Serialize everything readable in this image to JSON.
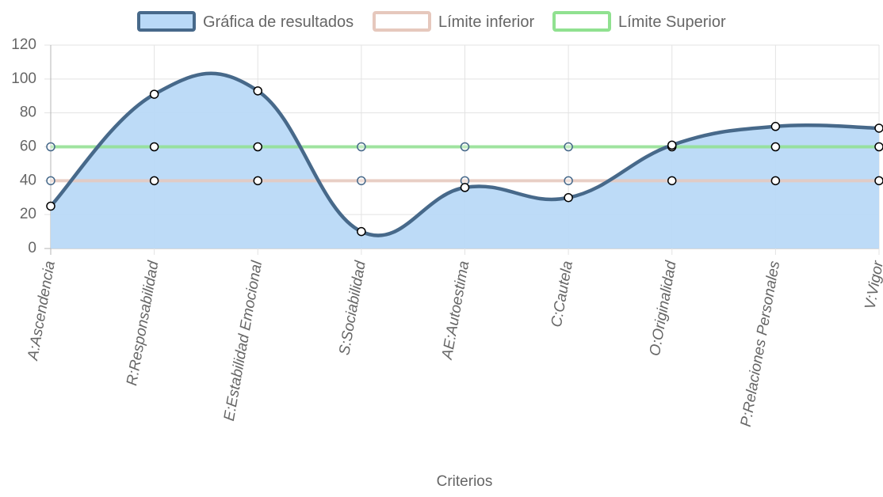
{
  "chart_data": {
    "type": "line",
    "categories": [
      "A:Ascendencia",
      "R:Responsabilidad",
      "E:Estabilidad Emocional",
      "S:Sociabilidad",
      "AE:Autoestima",
      "C:Cautela",
      "O:Originalidad",
      "P:Relaciones Personales",
      "V:Vigor"
    ],
    "series": [
      {
        "name": "Gráfica de resultados",
        "values": [
          25,
          91,
          93,
          10,
          36,
          30,
          61,
          72,
          71
        ],
        "color": "#47698a",
        "fill": "#b9d9f7"
      },
      {
        "name": "Límite inferior",
        "values": [
          40,
          40,
          40,
          40,
          40,
          40,
          40,
          40,
          40
        ],
        "color": "#e6c8bd"
      },
      {
        "name": "Límite Superior",
        "values": [
          60,
          60,
          60,
          60,
          60,
          60,
          60,
          60,
          60
        ],
        "color": "#90e190"
      }
    ],
    "xlabel": "Criterios",
    "ylabel": "",
    "ylim": [
      0,
      120
    ],
    "yticks": [
      0,
      20,
      40,
      60,
      80,
      100,
      120
    ],
    "grid": true,
    "legend": "top-center"
  }
}
